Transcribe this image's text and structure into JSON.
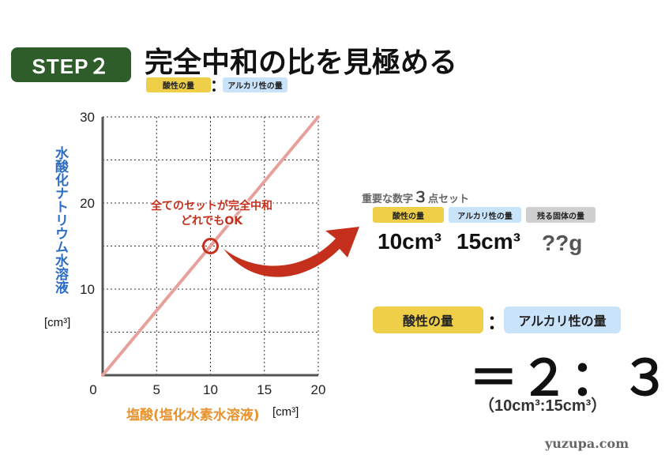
{
  "header": {
    "step_label": "STEP２",
    "title": "完全中和の比を見極める",
    "acid_chip": "酸性の量",
    "colon": "：",
    "alkali_chip": "アルカリ性の量"
  },
  "chart_data": {
    "type": "line",
    "xlabel": "塩酸(塩化水素水溶液)",
    "xunit": "[cm³]",
    "ylabel": "水酸化ナトリウム水溶液",
    "yunit": "[cm³]",
    "xlim": [
      0,
      20
    ],
    "ylim": [
      0,
      30
    ],
    "x_ticks": [
      "0",
      "5",
      "10",
      "15",
      "20"
    ],
    "y_ticks": [
      "10",
      "20",
      "30"
    ],
    "grid": true,
    "series": [
      {
        "x": [
          0,
          20
        ],
        "y": [
          0,
          30
        ],
        "color": "#e8a09a"
      }
    ],
    "highlight_point": {
      "x": 10,
      "y": 15,
      "color": "#c4301c"
    },
    "callout": [
      "全てのセットが完全中和",
      "どれでもOK"
    ]
  },
  "key_values": {
    "title_prefix": "重要な数字",
    "title_num": "３",
    "title_suffix": "点セット",
    "labels": [
      "酸性の量",
      "アルカリ性の量",
      "残る固体の量"
    ],
    "values": [
      "10cm³",
      "15cm³",
      "??g"
    ]
  },
  "ratio": {
    "acid_label": "酸性の量",
    "colon": "：",
    "alkali_label": "アルカリ性の量",
    "result": "＝２：３",
    "detail": "（10cm³:15cm³）"
  },
  "watermark": "yuzupa.com",
  "colors": {
    "step_green": "#2f5d2a",
    "acid_yellow": "#f0cf48",
    "alkali_blue": "#c9e3fb",
    "solid_gray": "#cfcfcf",
    "arrow_red": "#c4301c",
    "ylabel_blue": "#2b6cc4",
    "xlabel_orange": "#e8922e"
  }
}
